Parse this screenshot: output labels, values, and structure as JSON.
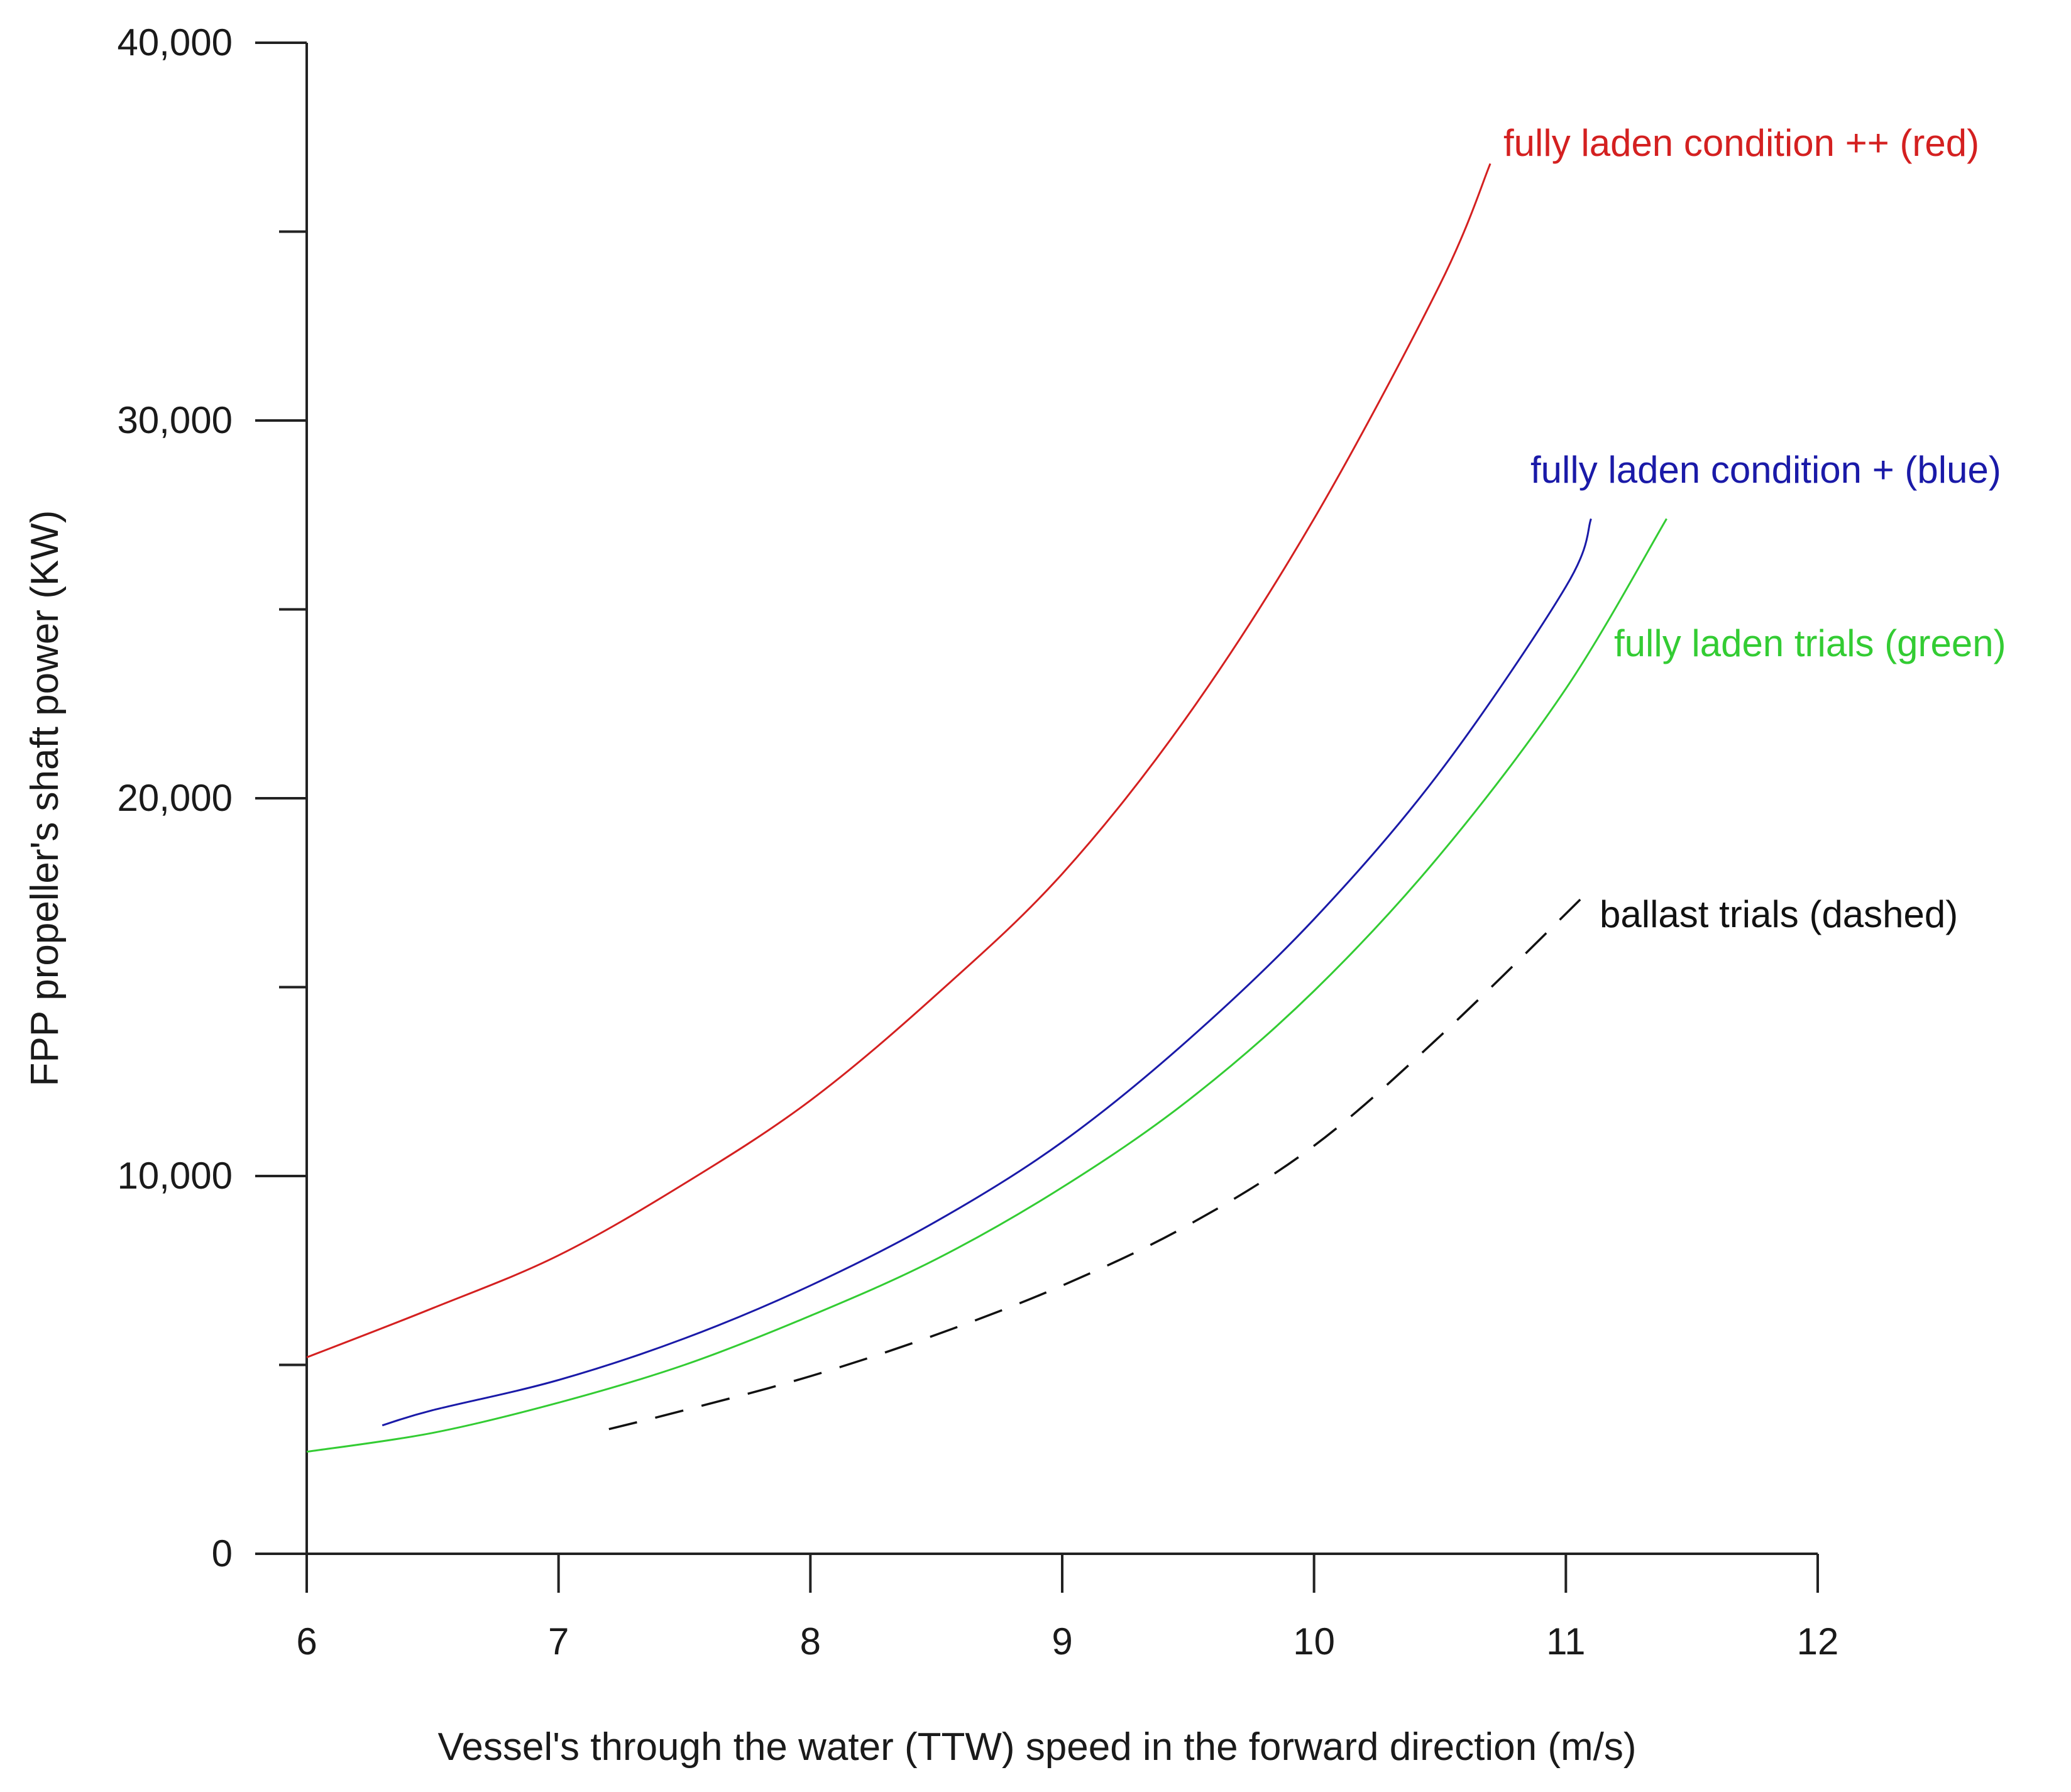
{
  "chart_data": {
    "type": "line",
    "title": "",
    "xlabel": "Vessel's through the water (TTW) speed in the forward direction (m/s)",
    "ylabel": "FPP propeller's shaft power (KW)",
    "xlim": [
      6,
      12
    ],
    "ylim": [
      0,
      40000
    ],
    "xticks": [
      6,
      7,
      8,
      9,
      10,
      11,
      12
    ],
    "xtick_labels": [
      "6",
      "7",
      "8",
      "9",
      "10",
      "11",
      "12"
    ],
    "yticks": [
      0,
      10000,
      20000,
      30000,
      40000
    ],
    "ytick_labels": [
      "0",
      "10,000",
      "20,000",
      "30,000",
      "40,000"
    ],
    "yminor_ticks": [
      5000,
      15000,
      25000,
      35000
    ],
    "grid": false,
    "series": [
      {
        "name": "fully laden condition ++",
        "label": "fully laden condition ++ (red)",
        "color": "#d42020",
        "dashed": false,
        "x": [
          6.0,
          6.5,
          7.0,
          7.5,
          8.0,
          8.5,
          9.0,
          9.5,
          10.0,
          10.5,
          10.7
        ],
        "y": [
          5200,
          6500,
          7900,
          9800,
          12000,
          14800,
          18000,
          22200,
          27400,
          33600,
          36800
        ]
      },
      {
        "name": "fully laden condition +",
        "label": "fully laden condition + (blue)",
        "color": "#1a1aa8",
        "dashed": false,
        "x": [
          6.3,
          6.5,
          7.0,
          7.5,
          8.0,
          8.5,
          9.0,
          9.5,
          10.0,
          10.5,
          11.0,
          11.1
        ],
        "y": [
          3400,
          3800,
          4600,
          5700,
          7100,
          8800,
          10900,
          13600,
          16800,
          20700,
          25600,
          27400
        ]
      },
      {
        "name": "fully laden trials",
        "label": "fully laden trials (green)",
        "color": "#33cc33",
        "dashed": false,
        "x": [
          6.0,
          6.5,
          7.0,
          7.5,
          8.0,
          8.5,
          9.0,
          9.5,
          10.0,
          10.5,
          11.0,
          11.4
        ],
        "y": [
          2700,
          3200,
          4000,
          5000,
          6300,
          7800,
          9700,
          12000,
          14900,
          18500,
          22900,
          27400
        ]
      },
      {
        "name": "ballast trials",
        "label": "ballast trials (dashed)",
        "color": "#111111",
        "dashed": true,
        "x": [
          7.2,
          7.5,
          8.0,
          8.5,
          9.0,
          9.5,
          10.0,
          10.5,
          11.1
        ],
        "y": [
          3300,
          3800,
          4700,
          5800,
          7100,
          8700,
          10800,
          13700,
          17600
        ]
      }
    ]
  }
}
